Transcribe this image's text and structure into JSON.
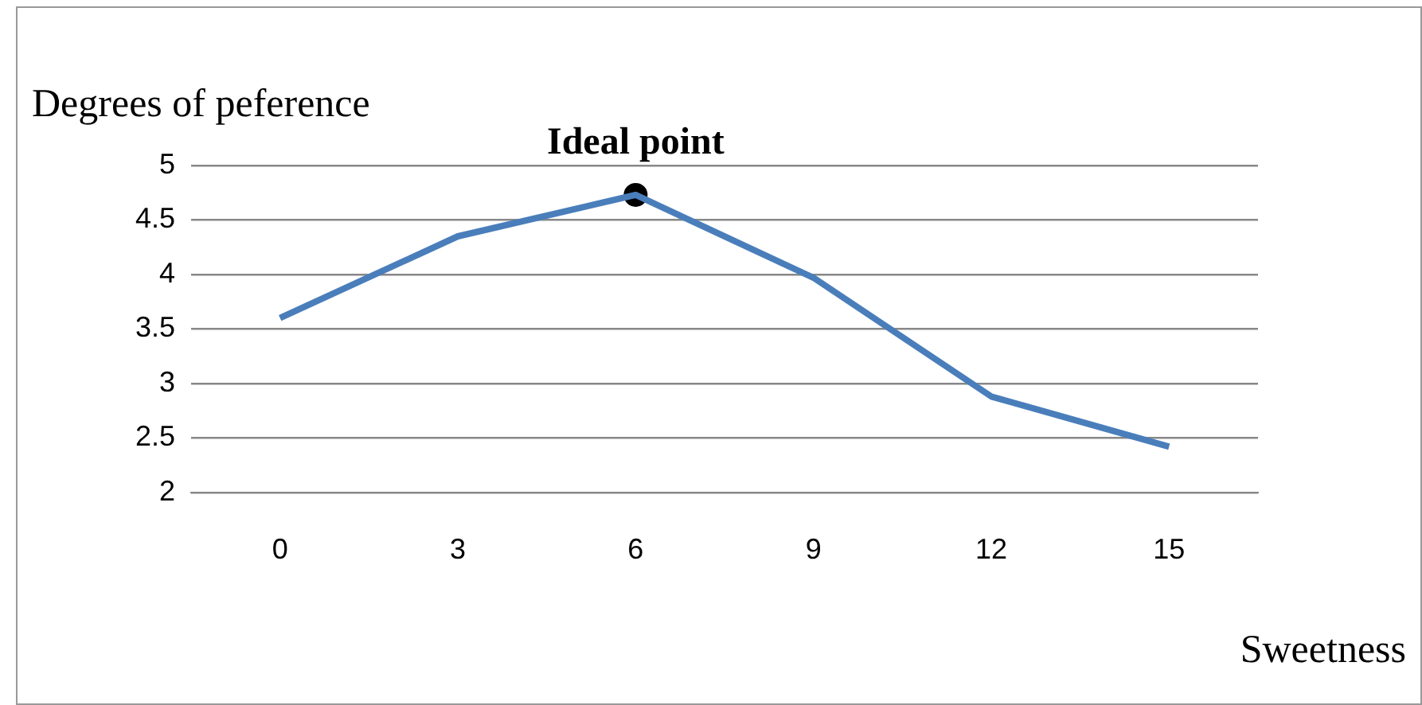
{
  "chart_data": {
    "type": "line",
    "ylabel": "Degrees of peference",
    "xlabel": "Sweetness",
    "categories": [
      "0",
      "3",
      "6",
      "9",
      "12",
      "15"
    ],
    "series": [
      {
        "color": "#4a7ebb",
        "marker": "none",
        "values": [
          3.6,
          4.35,
          4.73,
          3.97,
          2.88,
          2.42
        ]
      },
      {
        "type": "scatter",
        "marker": "circle",
        "color": "#000000",
        "x": [
          "6"
        ],
        "values": [
          4.73
        ]
      }
    ],
    "annotations": [
      {
        "text": "Ideal point",
        "x": "6",
        "y": 4.73
      }
    ],
    "ylim": [
      2,
      5
    ],
    "yticks": [
      2,
      2.5,
      3,
      3.5,
      4,
      4.5,
      5
    ],
    "grid": "y"
  }
}
